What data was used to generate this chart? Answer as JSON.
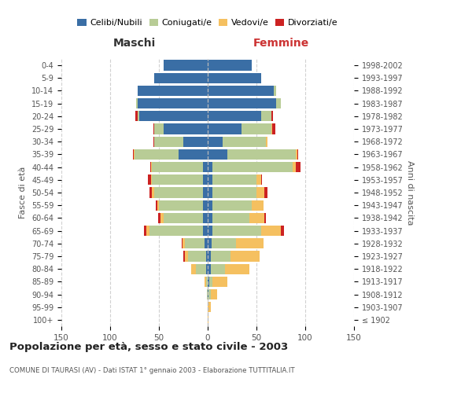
{
  "age_groups": [
    "100+",
    "95-99",
    "90-94",
    "85-89",
    "80-84",
    "75-79",
    "70-74",
    "65-69",
    "60-64",
    "55-59",
    "50-54",
    "45-49",
    "40-44",
    "35-39",
    "30-34",
    "25-29",
    "20-24",
    "15-19",
    "10-14",
    "5-9",
    "0-4"
  ],
  "birth_years": [
    "≤ 1902",
    "1903-1907",
    "1908-1912",
    "1913-1917",
    "1918-1922",
    "1923-1927",
    "1928-1932",
    "1933-1937",
    "1938-1942",
    "1943-1947",
    "1948-1952",
    "1953-1957",
    "1958-1962",
    "1963-1967",
    "1968-1972",
    "1973-1977",
    "1978-1982",
    "1983-1987",
    "1988-1992",
    "1993-1997",
    "1998-2002"
  ],
  "maschi_celibi": [
    0,
    0,
    0,
    0,
    2,
    2,
    3,
    5,
    5,
    5,
    5,
    5,
    5,
    30,
    25,
    45,
    70,
    72,
    72,
    55,
    45
  ],
  "maschi_coniugati": [
    0,
    0,
    1,
    2,
    10,
    18,
    20,
    55,
    40,
    45,
    50,
    52,
    52,
    45,
    30,
    10,
    2,
    1,
    0,
    0,
    0
  ],
  "maschi_vedovi": [
    0,
    0,
    0,
    1,
    5,
    3,
    3,
    3,
    3,
    2,
    2,
    1,
    1,
    1,
    0,
    0,
    0,
    0,
    0,
    0,
    0
  ],
  "maschi_divorziati": [
    0,
    0,
    0,
    0,
    0,
    2,
    1,
    2,
    3,
    1,
    3,
    3,
    1,
    1,
    1,
    1,
    2,
    0,
    0,
    0,
    0
  ],
  "femmine_celibi": [
    0,
    0,
    1,
    2,
    3,
    3,
    4,
    5,
    5,
    5,
    5,
    5,
    5,
    20,
    15,
    35,
    55,
    70,
    68,
    55,
    45
  ],
  "femmine_coniugati": [
    0,
    0,
    2,
    3,
    15,
    20,
    25,
    50,
    38,
    40,
    45,
    45,
    82,
    70,
    45,
    30,
    10,
    5,
    2,
    0,
    0
  ],
  "femmine_vedovi": [
    1,
    3,
    7,
    15,
    25,
    30,
    28,
    20,
    15,
    12,
    8,
    5,
    3,
    2,
    1,
    1,
    0,
    0,
    0,
    0,
    0
  ],
  "femmine_divorziati": [
    0,
    0,
    0,
    0,
    0,
    0,
    0,
    3,
    2,
    0,
    3,
    1,
    5,
    1,
    0,
    3,
    2,
    0,
    0,
    0,
    0
  ],
  "colors": {
    "celibi": "#3a6ea5",
    "coniugati": "#b8cc96",
    "vedovi": "#f5c060",
    "divorziati": "#cc2222"
  },
  "xlim": 150,
  "title": "Popolazione per età, sesso e stato civile - 2003",
  "subtitle": "COMUNE DI TAURASI (AV) - Dati ISTAT 1° gennaio 2003 - Elaborazione TUTTITALIA.IT",
  "ylabel_left": "Fasce di età",
  "ylabel_right": "Anni di nascita",
  "xlabel_left": "Maschi",
  "xlabel_right": "Femmine",
  "background_color": "#ffffff",
  "grid_color": "#cccccc"
}
